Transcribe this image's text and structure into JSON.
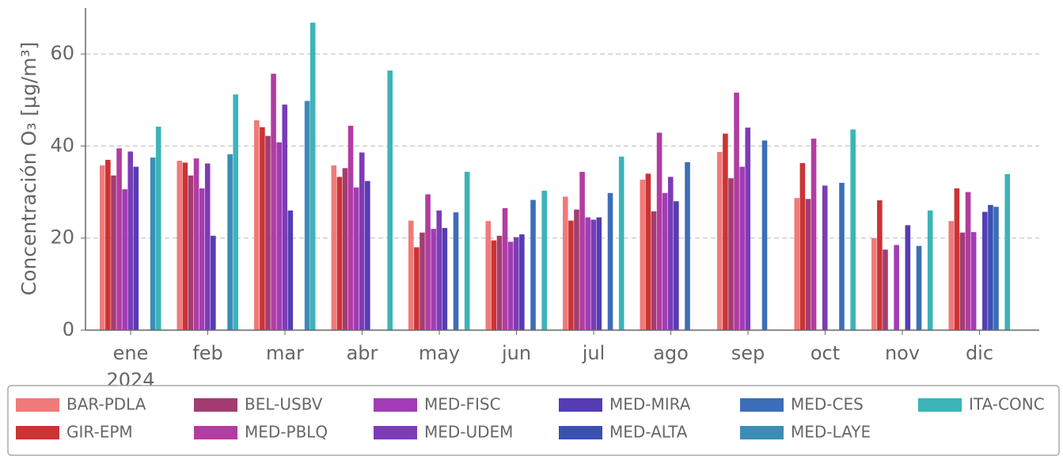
{
  "chart_data": {
    "type": "bar",
    "y_label": "Concentración O₃ [μg/m³]",
    "categories": [
      "ene",
      "feb",
      "mar",
      "abr",
      "may",
      "jun",
      "jul",
      "ago",
      "sep",
      "oct",
      "nov",
      "dic"
    ],
    "x_sublabel": "2024",
    "ylim": [
      0,
      70
    ],
    "yticks": [
      0,
      20,
      40,
      60
    ],
    "grid": true,
    "legend": "bottom",
    "series": [
      {
        "name": "BAR-PDLA",
        "color": "#f07a7a",
        "values": [
          35.8,
          36.8,
          45.6,
          35.8,
          23.8,
          23.7,
          29,
          32.7,
          38.7,
          28.7,
          20,
          23.7
        ]
      },
      {
        "name": "GIR-EPM",
        "color": "#cc3333",
        "values": [
          37,
          36.4,
          44.1,
          33.3,
          18,
          19.5,
          23.8,
          34,
          42.7,
          36.3,
          28.2,
          30.8
        ]
      },
      {
        "name": "BEL-USBV",
        "color": "#a33c70",
        "values": [
          33.6,
          33.6,
          42.2,
          35.2,
          21.2,
          20.5,
          26.2,
          25.8,
          33,
          28.5,
          17.5,
          21.2
        ]
      },
      {
        "name": "MED-PBLQ",
        "color": "#b23ca2",
        "values": [
          39.5,
          37.3,
          55.7,
          44.4,
          29.5,
          26.5,
          34.4,
          42.9,
          51.6,
          41.6,
          null,
          30
        ]
      },
      {
        "name": "MED-FISC",
        "color": "#a23cb6",
        "values": [
          30.6,
          30.8,
          40.8,
          31,
          22,
          19.2,
          24.5,
          29.8,
          35.5,
          null,
          18.5,
          21.3
        ]
      },
      {
        "name": "MED-UDEM",
        "color": "#7c3cb6",
        "values": [
          38.8,
          36.2,
          49,
          38.6,
          26,
          20.2,
          24,
          33.3,
          44,
          31.4,
          null,
          null
        ]
      },
      {
        "name": "MED-MIRA",
        "color": "#553cb4",
        "values": [
          35.5,
          20.5,
          26,
          32.4,
          22.2,
          20.8,
          24.5,
          28,
          null,
          null,
          22.8,
          25.7
        ]
      },
      {
        "name": "MED-ALTA",
        "color": "#3c50b4",
        "values": [
          null,
          null,
          null,
          null,
          null,
          null,
          null,
          null,
          null,
          null,
          null,
          27.2
        ]
      },
      {
        "name": "MED-CES",
        "color": "#3c6eb8",
        "values": [
          null,
          null,
          null,
          null,
          25.6,
          28.3,
          29.8,
          36.5,
          41.2,
          32,
          18.3,
          26.8
        ]
      },
      {
        "name": "MED-LAYE",
        "color": "#3c8cb8",
        "values": [
          37.5,
          38.2,
          49.8,
          null,
          null,
          null,
          null,
          null,
          null,
          null,
          null,
          null
        ]
      },
      {
        "name": "ITA-CONC",
        "color": "#3cb4b8",
        "values": [
          44.2,
          51.2,
          66.8,
          56.4,
          34.4,
          30.3,
          37.7,
          null,
          null,
          43.6,
          26,
          33.9
        ]
      }
    ]
  }
}
